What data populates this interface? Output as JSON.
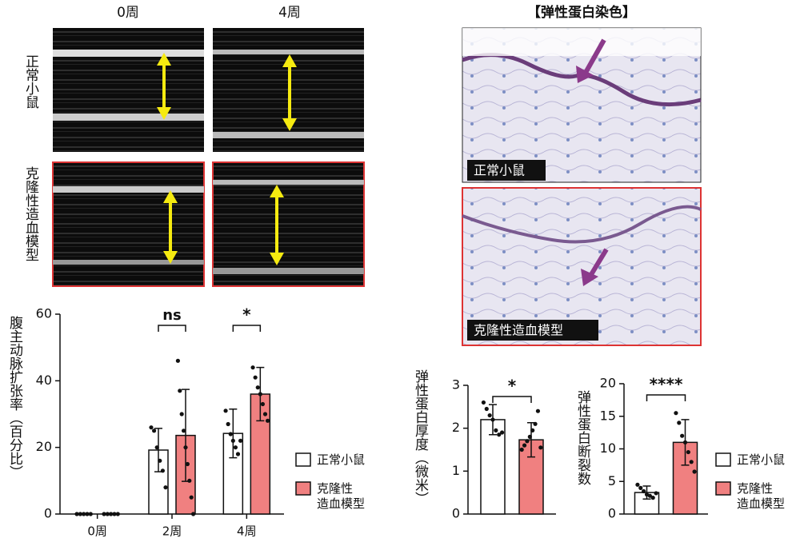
{
  "panels": {
    "col_labels": [
      "0周",
      "4周"
    ],
    "row_labels": [
      "正常小鼠",
      "克隆性造血模型"
    ],
    "stain_title": "【弹性蛋白染色】",
    "stain_labels": [
      "正常小鼠",
      "克隆性造血模型"
    ]
  },
  "chart_data": [
    {
      "type": "bar",
      "y_label": "腹主动脉扩张率（百分比）",
      "categories": [
        "0周",
        "2周",
        "4周"
      ],
      "ylim": [
        0,
        60
      ],
      "yticks": [
        0,
        20,
        40,
        60
      ],
      "legend": true,
      "annotations": [
        null,
        "ns",
        "*"
      ],
      "series": [
        {
          "name": "正常小鼠",
          "color": "#ffffff",
          "values": [
            0,
            19.2,
            24.2
          ],
          "errors": [
            0,
            6.5,
            7.3
          ],
          "points": [
            [
              0,
              0,
              0,
              0,
              0
            ],
            [
              26,
              25,
              20,
              16,
              13,
              8
            ],
            [
              31,
              27,
              24,
              22,
              20,
              18,
              22
            ]
          ]
        },
        {
          "name": "克隆性造血模型",
          "color": "#f08080",
          "values": [
            0,
            23.6,
            36
          ],
          "errors": [
            0,
            13.8,
            8
          ],
          "points": [
            [
              0,
              0,
              0,
              0,
              0
            ],
            [
              46,
              37,
              30,
              25,
              20,
              15,
              10,
              5,
              0
            ],
            [
              44,
              41,
              38,
              36,
              33,
              30,
              28
            ]
          ]
        }
      ]
    },
    {
      "type": "bar",
      "y_label": "弹性蛋白厚度（微米）",
      "categories": [
        null
      ],
      "ylim": [
        0,
        3
      ],
      "yticks": [
        0,
        1,
        2,
        3
      ],
      "legend": false,
      "annotations": [
        "*"
      ],
      "series": [
        {
          "name": "正常小鼠",
          "color": "#ffffff",
          "values": [
            2.2
          ],
          "errors": [
            0.35
          ],
          "points": [
            [
              2.6,
              2.45,
              2.3,
              2.2,
              1.95,
              1.85,
              1.9
            ]
          ]
        },
        {
          "name": "克隆性造血模型",
          "color": "#f08080",
          "values": [
            1.73
          ],
          "errors": [
            0.4
          ],
          "points": [
            [
              1.5,
              1.6,
              1.7,
              1.8,
              1.95,
              2.1,
              2.4,
              1.55
            ]
          ]
        }
      ]
    },
    {
      "type": "bar",
      "y_label": "弹性蛋白断裂数",
      "categories": [
        null
      ],
      "ylim": [
        0,
        20
      ],
      "yticks": [
        0,
        5,
        10,
        15,
        20
      ],
      "legend": true,
      "annotations": [
        "****"
      ],
      "series": [
        {
          "name": "正常小鼠",
          "color": "#ffffff",
          "values": [
            3.3
          ],
          "errors": [
            1
          ],
          "points": [
            [
              4.5,
              4,
              3.5,
              3,
              2.8,
              2.5,
              3.2
            ]
          ]
        },
        {
          "name": "克隆性造血模型",
          "color": "#f08080",
          "values": [
            11
          ],
          "errors": [
            3.5
          ],
          "points": [
            [
              15.5,
              14,
              12,
              11,
              9.5,
              8,
              6.5
            ]
          ]
        }
      ]
    }
  ]
}
